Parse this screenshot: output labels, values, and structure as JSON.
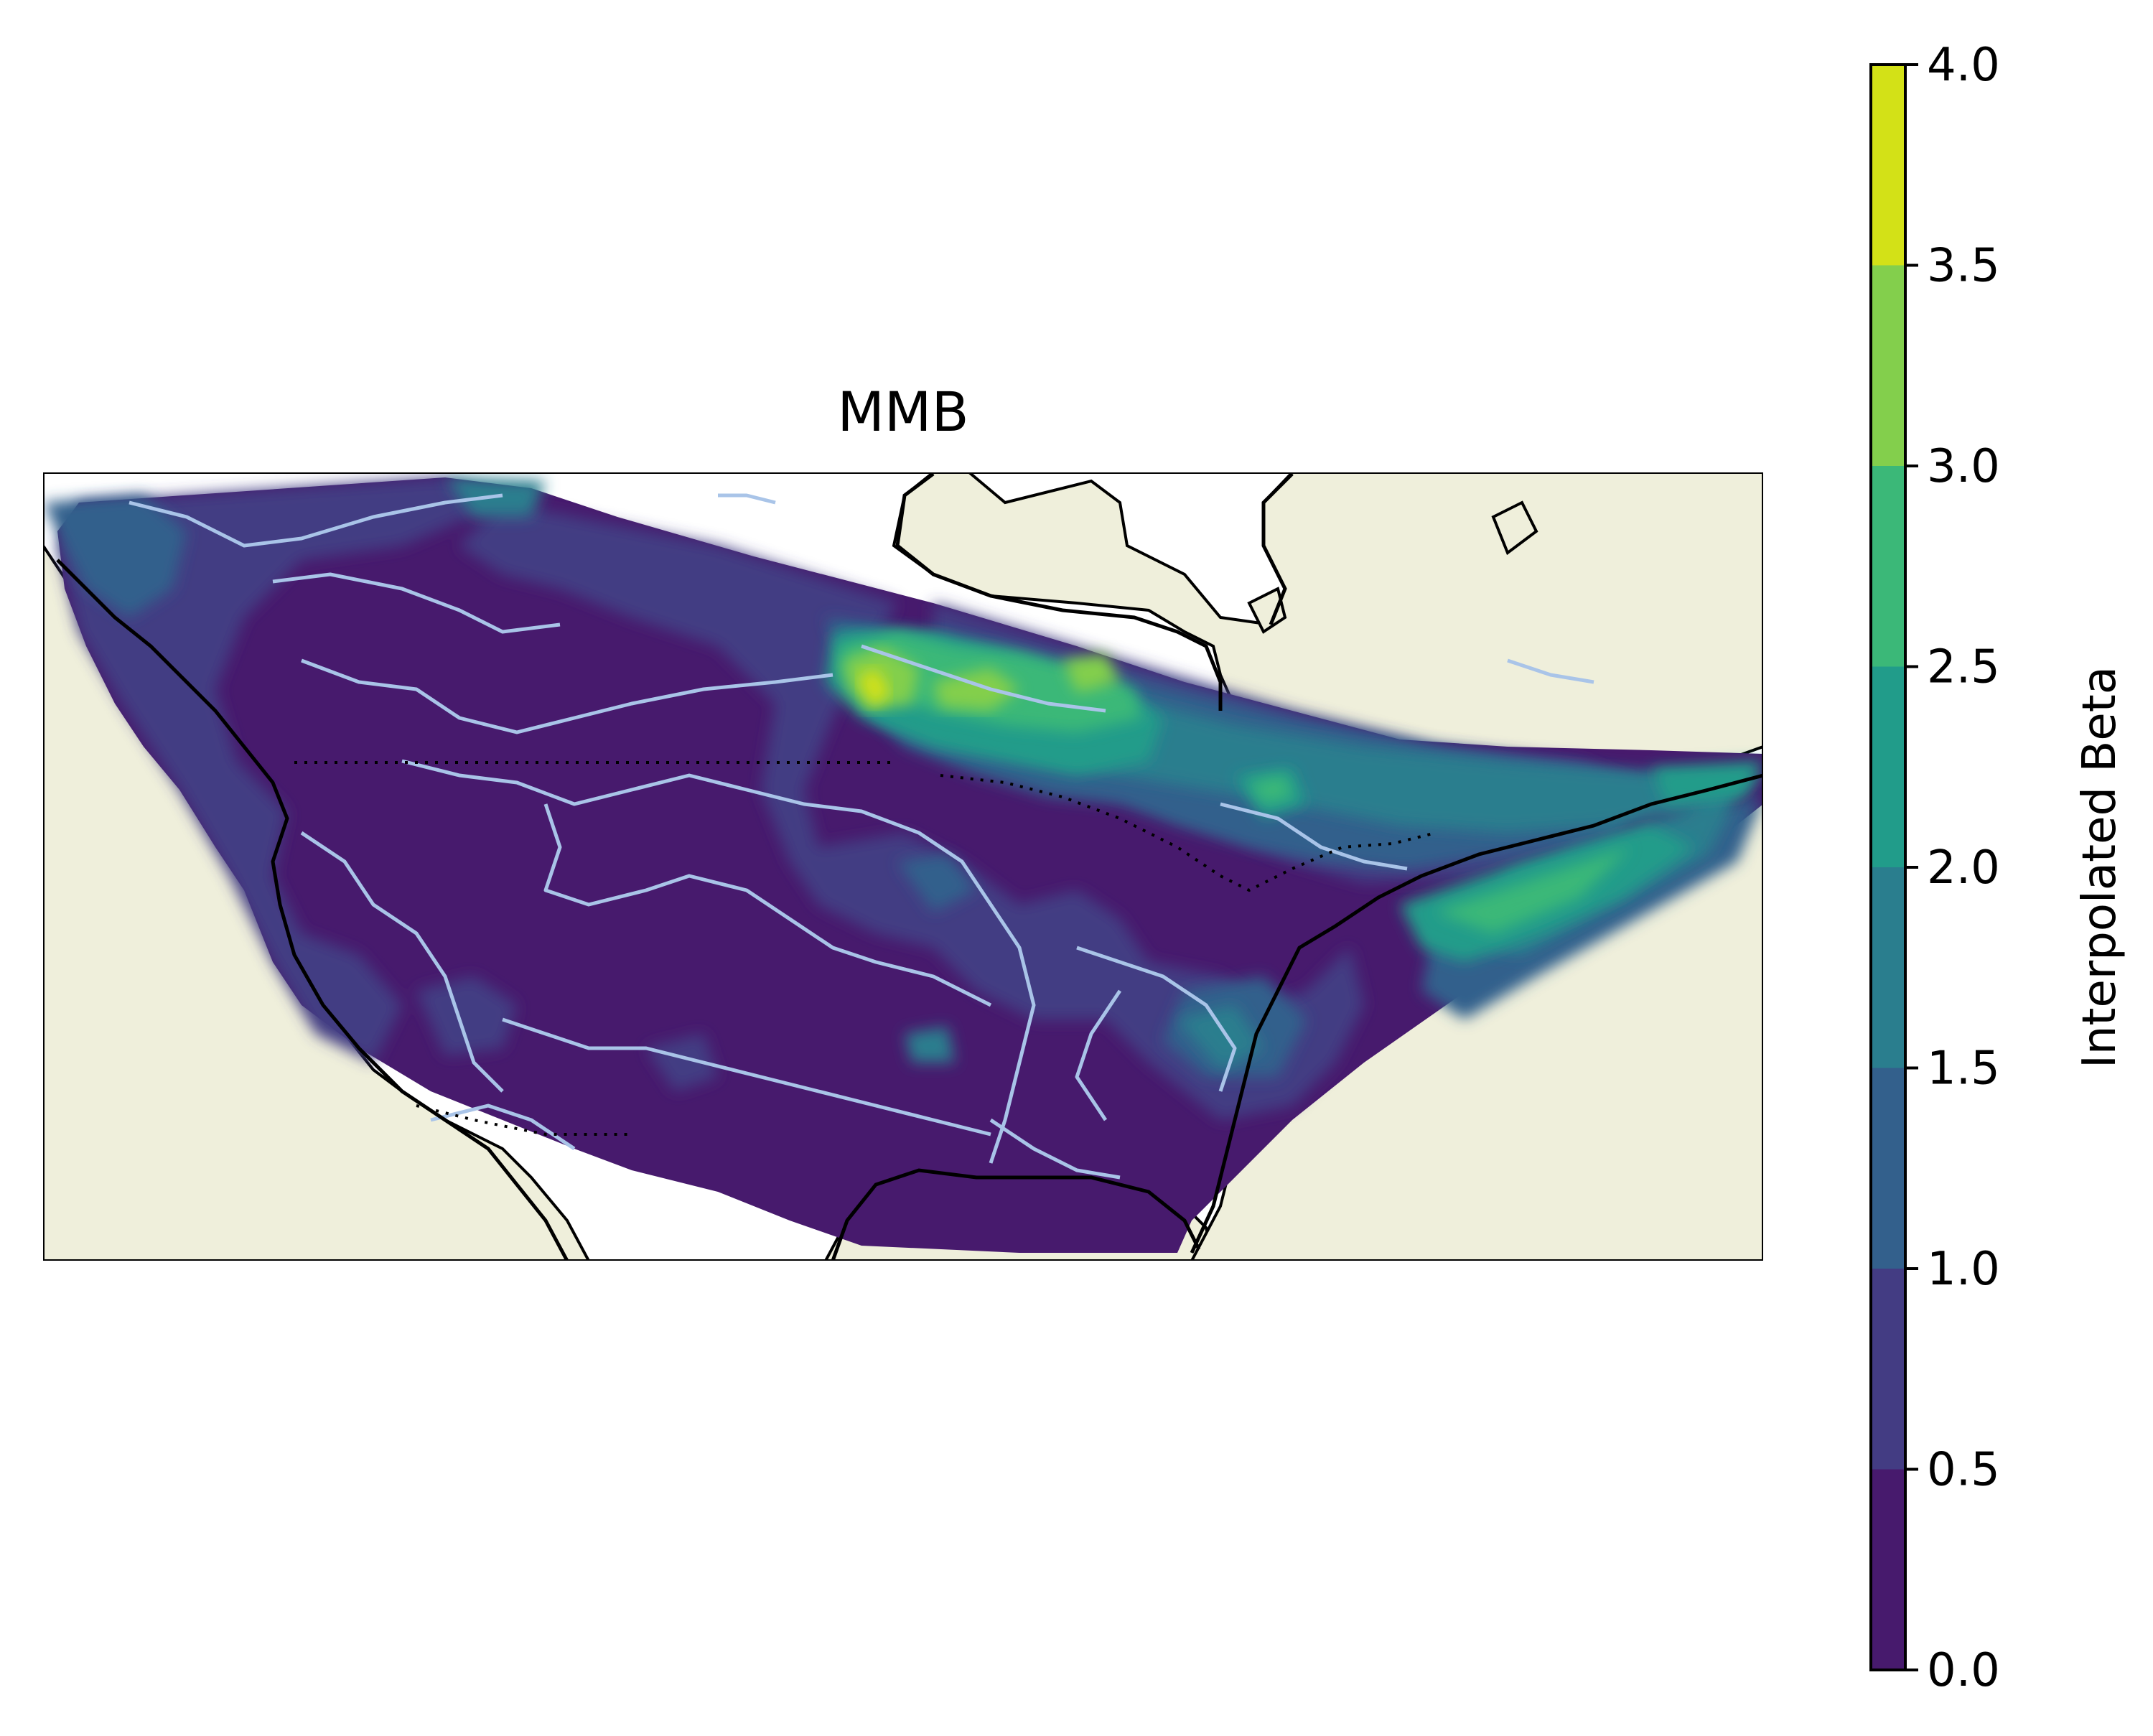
{
  "map": {
    "title": "MMB",
    "region": "North America (Canada / United States)",
    "colorbar": {
      "label": "Interpolated Beta",
      "ticks": [
        "0.0",
        "0.5",
        "1.0",
        "1.5",
        "2.0",
        "2.5",
        "3.0",
        "3.5",
        "4.0"
      ],
      "levels": [
        {
          "range": [
            0.0,
            0.5
          ],
          "color": "#471a6d"
        },
        {
          "range": [
            0.5,
            1.0
          ],
          "color": "#433c83"
        },
        {
          "range": [
            1.0,
            1.5
          ],
          "color": "#33608c"
        },
        {
          "range": [
            1.5,
            2.0
          ],
          "color": "#2a7e8e"
        },
        {
          "range": [
            2.0,
            2.5
          ],
          "color": "#219c8a"
        },
        {
          "range": [
            2.5,
            3.0
          ],
          "color": "#3bb878"
        },
        {
          "range": [
            3.0,
            3.5
          ],
          "color": "#83cf4c"
        },
        {
          "range": [
            3.5,
            4.0
          ],
          "color": "#d3e117"
        }
      ]
    },
    "colors": {
      "land": "#efefdb",
      "ocean": "#ffffff",
      "rivers": "#a9c4e8",
      "coastline": "#000000"
    }
  }
}
